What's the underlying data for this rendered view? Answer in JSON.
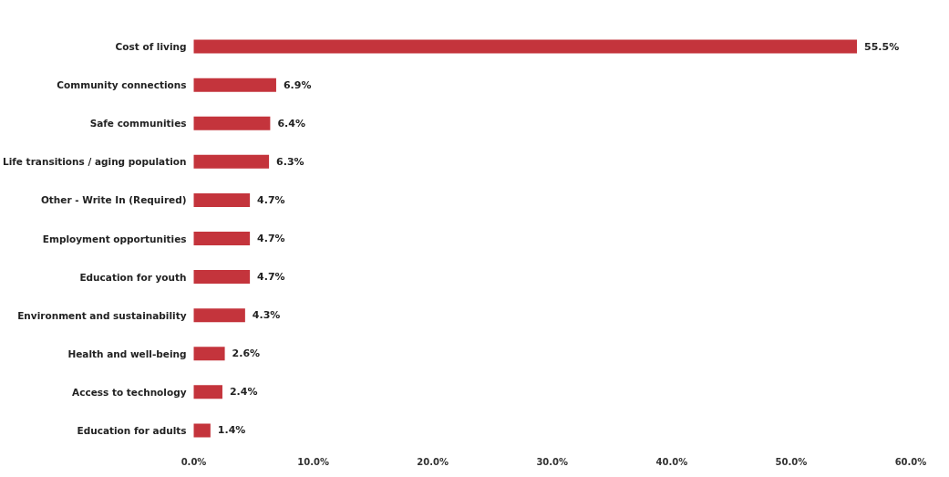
{
  "chart_data": {
    "type": "bar",
    "orientation": "horizontal",
    "categories": [
      "Cost of living",
      "Community connections",
      "Safe communities",
      "Life transitions / aging population",
      "Other - Write In (Required)",
      "Employment opportunities",
      "Education for youth",
      "Environment and sustainability",
      "Health and well-being",
      "Access to technology",
      "Education for adults"
    ],
    "values": [
      55.5,
      6.9,
      6.4,
      6.3,
      4.7,
      4.7,
      4.7,
      4.3,
      2.6,
      2.4,
      1.4
    ],
    "value_labels": [
      "55.5%",
      "6.9%",
      "6.4%",
      "6.3%",
      "4.7%",
      "4.7%",
      "4.7%",
      "4.3%",
      "2.6%",
      "2.4%",
      "1.4%"
    ],
    "color": "#c4343c",
    "xlim": [
      0,
      60
    ],
    "xticks": [
      {
        "value": 0,
        "label": "0.0%"
      },
      {
        "value": 10,
        "label": "10.0%"
      },
      {
        "value": 20,
        "label": "20.0%"
      },
      {
        "value": 30,
        "label": "30.0%"
      },
      {
        "value": 40,
        "label": "40.0%"
      },
      {
        "value": 50,
        "label": "50.0%"
      },
      {
        "value": 60,
        "label": "60.0%"
      }
    ],
    "grid": false
  }
}
